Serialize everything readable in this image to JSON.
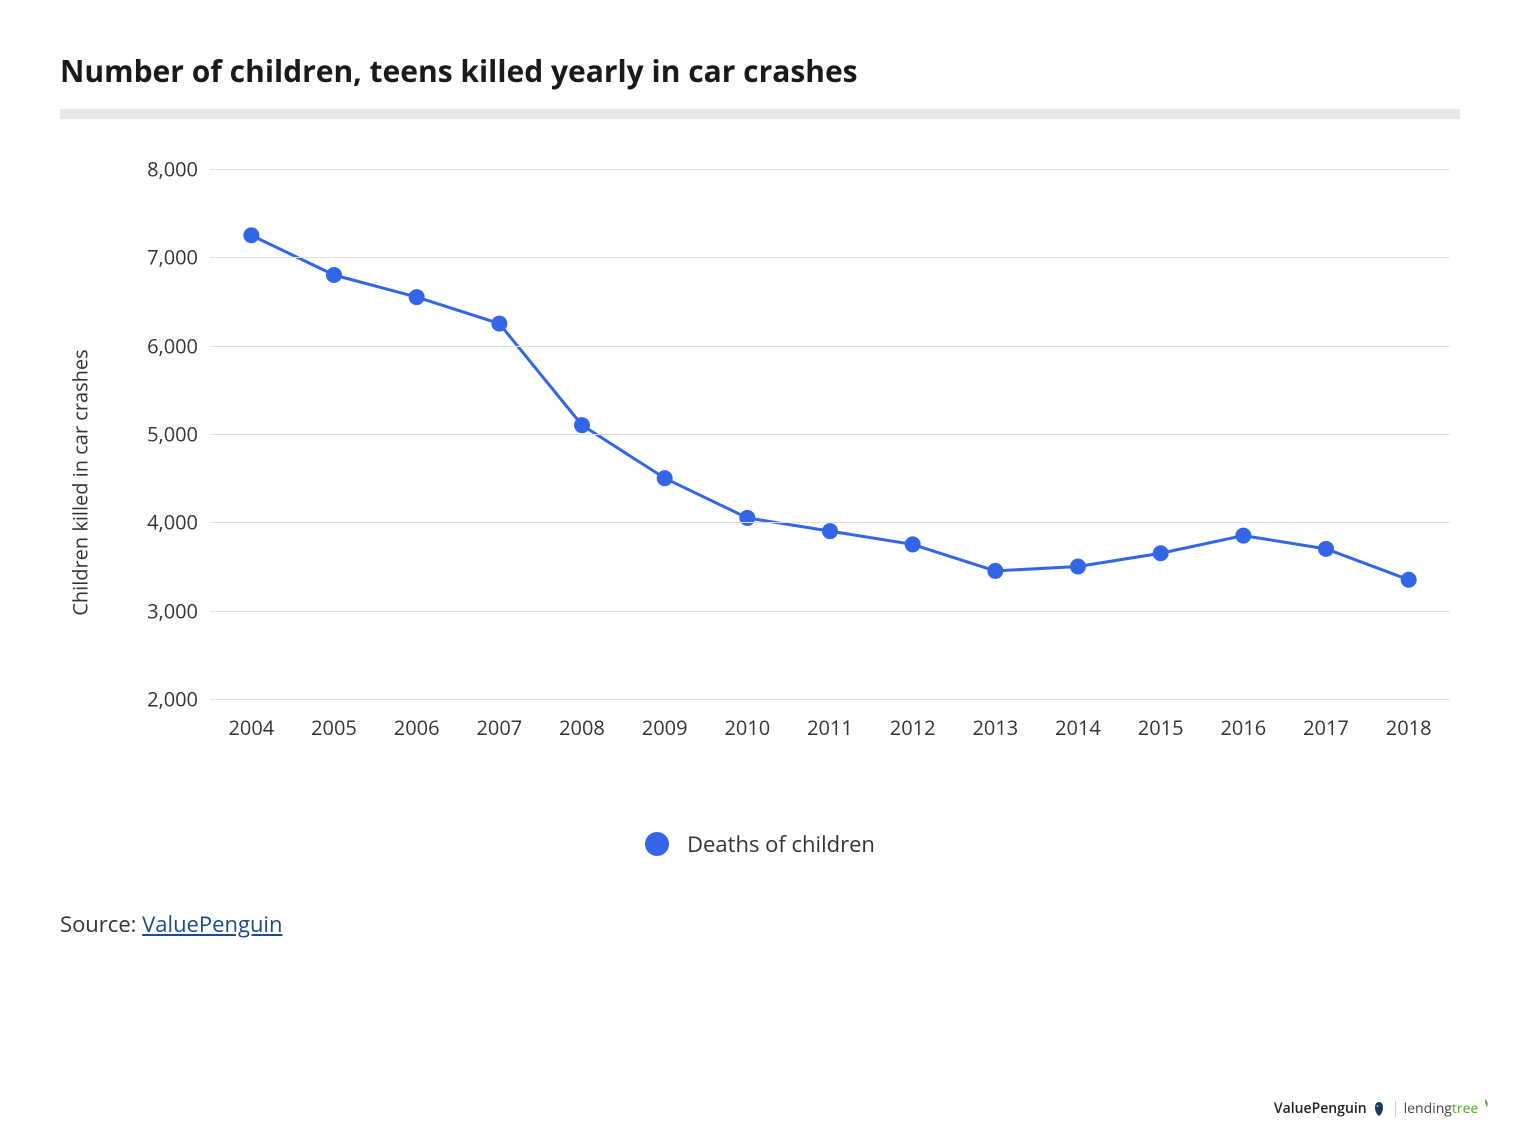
{
  "title": "Number of children, teens killed yearly in car crashes",
  "chart": {
    "type": "line",
    "y_axis_label": "Children killed in car crashes",
    "x_values": [
      2004,
      2005,
      2006,
      2007,
      2008,
      2009,
      2010,
      2011,
      2012,
      2013,
      2014,
      2015,
      2016,
      2017,
      2018
    ],
    "y_values": [
      7250,
      6800,
      6550,
      6250,
      5100,
      4500,
      4050,
      3900,
      3750,
      3450,
      3500,
      3650,
      3850,
      3700,
      3350
    ],
    "y_ticks": [
      2000,
      3000,
      4000,
      5000,
      6000,
      7000,
      8000
    ],
    "y_tick_labels": [
      "2,000",
      "3,000",
      "4,000",
      "5,000",
      "6,000",
      "7,000",
      "8,000"
    ],
    "ylim": [
      2000,
      8000
    ],
    "xlim": [
      2003.5,
      2018.5
    ],
    "line_color": "#3366e6",
    "marker_color": "#3366e6",
    "marker_radius": 8,
    "line_width": 3,
    "grid_color": "#e0e0e0",
    "background_color": "#ffffff",
    "legend_label": "Deaths of children",
    "legend_dot_color": "#3366e6",
    "title_fontsize": 30,
    "axis_label_fontsize": 20,
    "tick_fontsize": 20,
    "legend_fontsize": 22
  },
  "source": {
    "prefix": "Source: ",
    "link_text": "ValuePenguin"
  },
  "footer": {
    "brand1": "ValuePenguin",
    "brand2_pre": "lending",
    "brand2_accent": "tree"
  }
}
